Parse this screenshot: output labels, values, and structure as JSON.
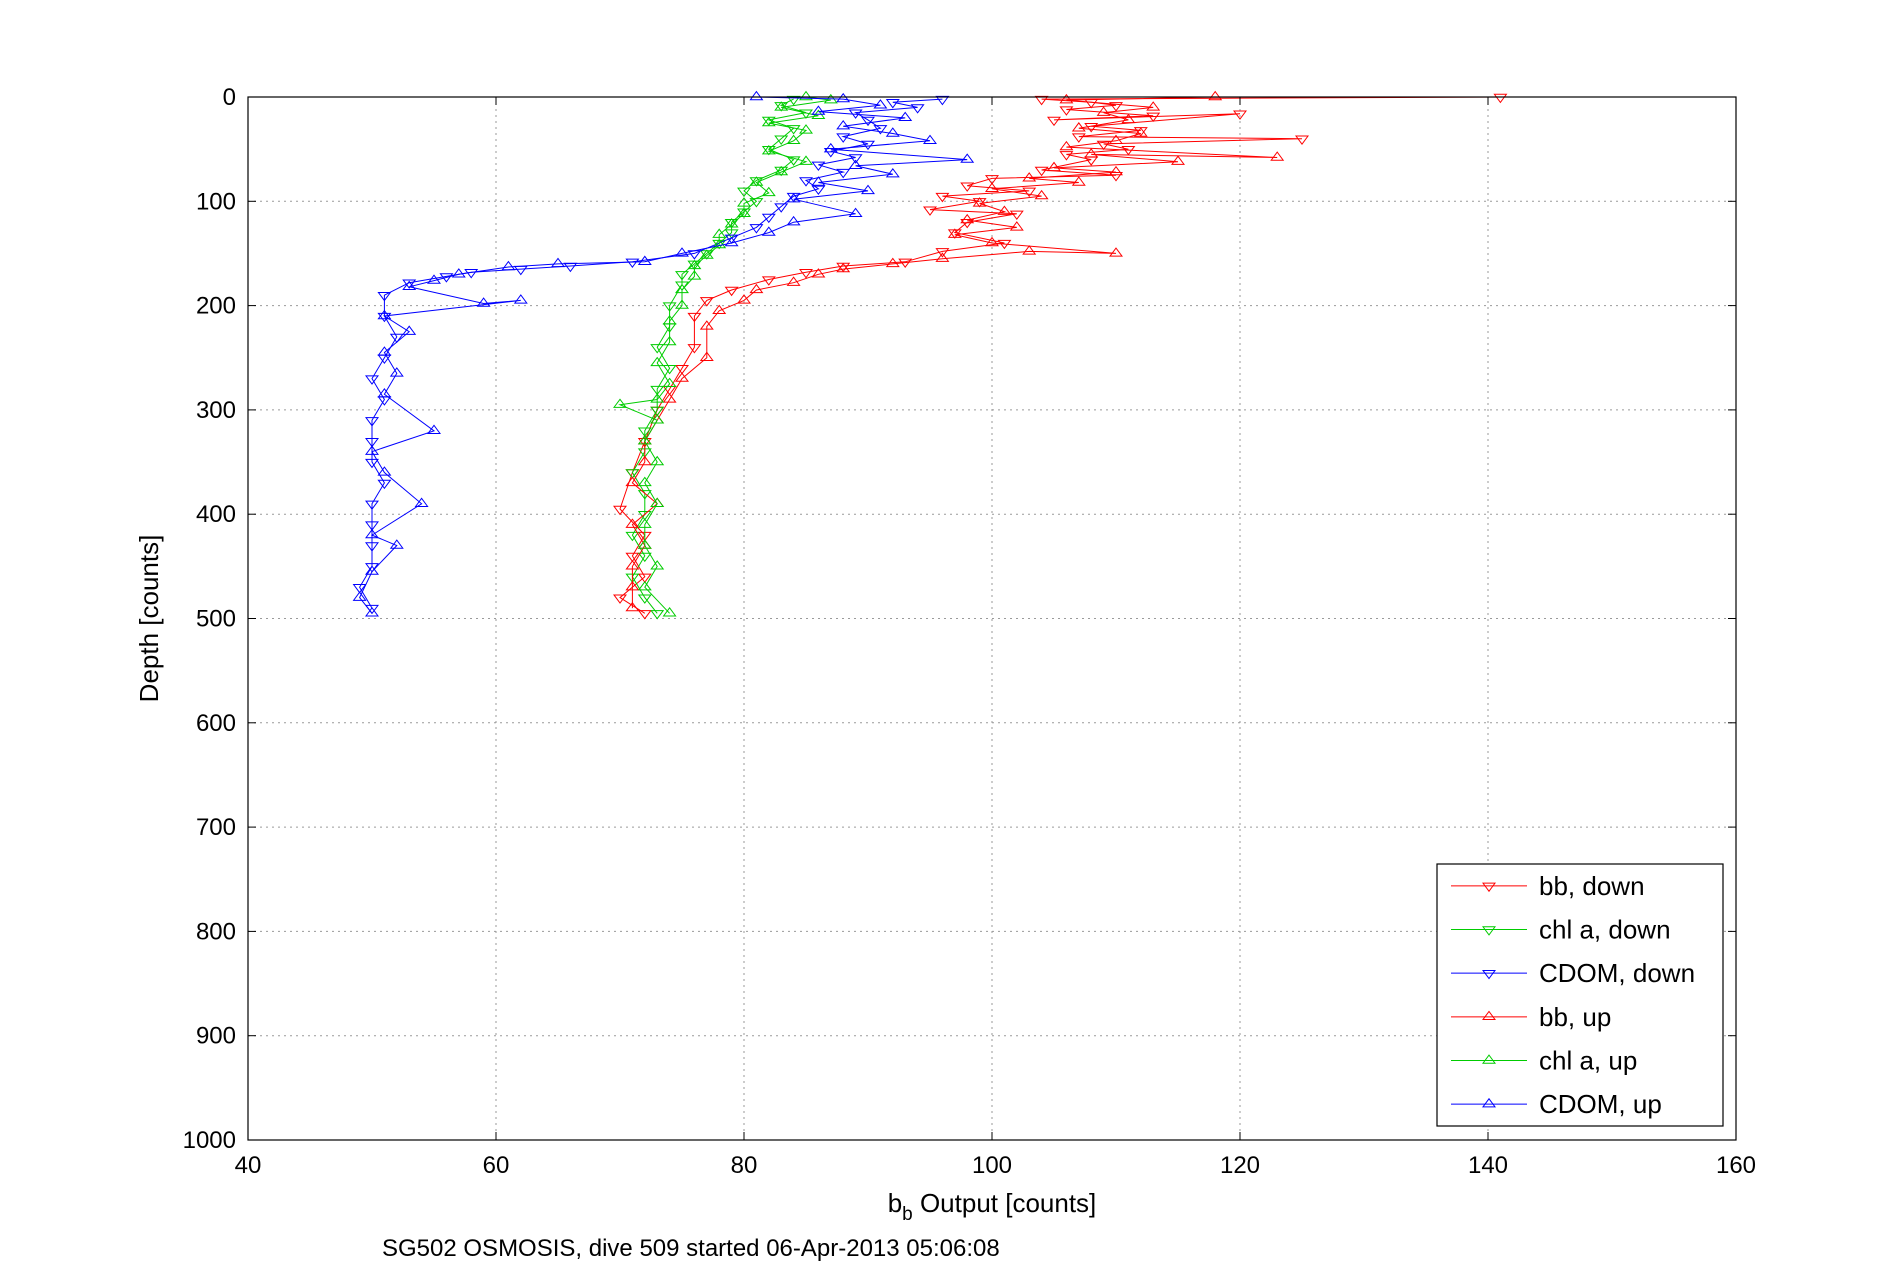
{
  "chart_data": {
    "type": "scatter",
    "xlabel_main": "b",
    "xlabel_sub": "b",
    "xlabel_rest": " Output [counts]",
    "ylabel": "Depth [counts]",
    "xlim": [
      40,
      160
    ],
    "ylim": [
      0,
      1000
    ],
    "y_reversed": true,
    "grid": true,
    "legend_position": "bottom-right",
    "xticks": [
      "40",
      "60",
      "80",
      "100",
      "120",
      "140",
      "160"
    ],
    "yticks": [
      "0",
      "100",
      "200",
      "300",
      "400",
      "500",
      "600",
      "700",
      "800",
      "900",
      "1000"
    ],
    "footnote": "SG502 OSMOSIS, dive 509 started 06-Apr-2013 05:06:08",
    "series": [
      {
        "name": "bb, down",
        "color": "#ff0000",
        "marker": "triangle-down",
        "points": [
          [
            141,
            0
          ],
          [
            104,
            2
          ],
          [
            108,
            5
          ],
          [
            110,
            8
          ],
          [
            106,
            12
          ],
          [
            113,
            18
          ],
          [
            105,
            22
          ],
          [
            120,
            16
          ],
          [
            108,
            28
          ],
          [
            112,
            32
          ],
          [
            107,
            38
          ],
          [
            125,
            40
          ],
          [
            109,
            45
          ],
          [
            111,
            50
          ],
          [
            106,
            55
          ],
          [
            108,
            60
          ],
          [
            104,
            70
          ],
          [
            110,
            75
          ],
          [
            100,
            78
          ],
          [
            98,
            85
          ],
          [
            103,
            90
          ],
          [
            96,
            95
          ],
          [
            99,
            100
          ],
          [
            95,
            108
          ],
          [
            102,
            112
          ],
          [
            98,
            120
          ],
          [
            97,
            130
          ],
          [
            101,
            140
          ],
          [
            96,
            148
          ],
          [
            93,
            158
          ],
          [
            88,
            162
          ],
          [
            85,
            168
          ],
          [
            82,
            175
          ],
          [
            79,
            185
          ],
          [
            77,
            195
          ],
          [
            76,
            210
          ],
          [
            76,
            240
          ],
          [
            75,
            260
          ],
          [
            74,
            280
          ],
          [
            73,
            300
          ],
          [
            72,
            330
          ],
          [
            71,
            360
          ],
          [
            70,
            395
          ],
          [
            72,
            420
          ],
          [
            71,
            440
          ],
          [
            72,
            460
          ],
          [
            70,
            480
          ],
          [
            72,
            495
          ]
        ]
      },
      {
        "name": "chl a, down",
        "color": "#00cc00",
        "marker": "triangle-down",
        "points": [
          [
            84,
            2
          ],
          [
            83,
            8
          ],
          [
            85,
            15
          ],
          [
            82,
            22
          ],
          [
            84,
            30
          ],
          [
            83,
            40
          ],
          [
            82,
            50
          ],
          [
            84,
            60
          ],
          [
            83,
            70
          ],
          [
            81,
            80
          ],
          [
            80,
            90
          ],
          [
            81,
            100
          ],
          [
            80,
            110
          ],
          [
            79,
            120
          ],
          [
            79,
            130
          ],
          [
            78,
            140
          ],
          [
            77,
            150
          ],
          [
            76,
            160
          ],
          [
            75,
            170
          ],
          [
            75,
            180
          ],
          [
            74,
            200
          ],
          [
            74,
            220
          ],
          [
            73,
            240
          ],
          [
            74,
            260
          ],
          [
            73,
            280
          ],
          [
            73,
            300
          ],
          [
            72,
            320
          ],
          [
            72,
            340
          ],
          [
            71,
            360
          ],
          [
            72,
            380
          ],
          [
            72,
            400
          ],
          [
            71,
            420
          ],
          [
            72,
            440
          ],
          [
            71,
            460
          ],
          [
            72,
            480
          ],
          [
            73,
            495
          ]
        ]
      },
      {
        "name": "CDOM, down",
        "color": "#0000ff",
        "marker": "triangle-down",
        "points": [
          [
            96,
            2
          ],
          [
            92,
            5
          ],
          [
            94,
            10
          ],
          [
            89,
            15
          ],
          [
            90,
            22
          ],
          [
            91,
            30
          ],
          [
            88,
            38
          ],
          [
            90,
            45
          ],
          [
            87,
            52
          ],
          [
            89,
            58
          ],
          [
            86,
            65
          ],
          [
            88,
            72
          ],
          [
            85,
            80
          ],
          [
            86,
            88
          ],
          [
            84,
            95
          ],
          [
            83,
            105
          ],
          [
            82,
            115
          ],
          [
            81,
            125
          ],
          [
            79,
            135
          ],
          [
            76,
            150
          ],
          [
            71,
            158
          ],
          [
            66,
            162
          ],
          [
            62,
            165
          ],
          [
            58,
            168
          ],
          [
            56,
            172
          ],
          [
            53,
            178
          ],
          [
            51,
            190
          ],
          [
            51,
            210
          ],
          [
            52,
            230
          ],
          [
            51,
            250
          ],
          [
            50,
            270
          ],
          [
            51,
            290
          ],
          [
            50,
            310
          ],
          [
            50,
            330
          ],
          [
            50,
            350
          ],
          [
            51,
            370
          ],
          [
            50,
            390
          ],
          [
            50,
            410
          ],
          [
            50,
            430
          ],
          [
            50,
            450
          ],
          [
            49,
            470
          ],
          [
            50,
            490
          ]
        ]
      },
      {
        "name": "bb, up",
        "color": "#ff0000",
        "marker": "triangle-up",
        "points": [
          [
            118,
            0
          ],
          [
            106,
            3
          ],
          [
            113,
            10
          ],
          [
            109,
            15
          ],
          [
            111,
            22
          ],
          [
            107,
            30
          ],
          [
            112,
            35
          ],
          [
            110,
            42
          ],
          [
            106,
            48
          ],
          [
            123,
            58
          ],
          [
            108,
            55
          ],
          [
            115,
            62
          ],
          [
            105,
            68
          ],
          [
            110,
            72
          ],
          [
            103,
            78
          ],
          [
            107,
            82
          ],
          [
            100,
            88
          ],
          [
            104,
            95
          ],
          [
            99,
            102
          ],
          [
            101,
            110
          ],
          [
            98,
            118
          ],
          [
            102,
            125
          ],
          [
            97,
            132
          ],
          [
            100,
            140
          ],
          [
            110,
            150
          ],
          [
            103,
            148
          ],
          [
            96,
            155
          ],
          [
            92,
            160
          ],
          [
            88,
            165
          ],
          [
            86,
            170
          ],
          [
            84,
            178
          ],
          [
            81,
            185
          ],
          [
            80,
            195
          ],
          [
            78,
            205
          ],
          [
            77,
            220
          ],
          [
            77,
            250
          ],
          [
            75,
            270
          ],
          [
            74,
            290
          ],
          [
            73,
            310
          ],
          [
            72,
            330
          ],
          [
            72,
            350
          ],
          [
            71,
            370
          ],
          [
            73,
            390
          ],
          [
            71,
            410
          ],
          [
            72,
            430
          ],
          [
            71,
            450
          ],
          [
            71,
            470
          ],
          [
            71,
            490
          ]
        ]
      },
      {
        "name": "chl a, up",
        "color": "#00cc00",
        "marker": "triangle-up",
        "points": [
          [
            85,
            0
          ],
          [
            87,
            3
          ],
          [
            83,
            10
          ],
          [
            86,
            18
          ],
          [
            82,
            25
          ],
          [
            85,
            32
          ],
          [
            84,
            42
          ],
          [
            82,
            52
          ],
          [
            85,
            62
          ],
          [
            83,
            72
          ],
          [
            81,
            82
          ],
          [
            82,
            92
          ],
          [
            80,
            102
          ],
          [
            80,
            112
          ],
          [
            79,
            122
          ],
          [
            78,
            132
          ],
          [
            78,
            142
          ],
          [
            77,
            152
          ],
          [
            76,
            162
          ],
          [
            76,
            172
          ],
          [
            75,
            185
          ],
          [
            75,
            200
          ],
          [
            74,
            215
          ],
          [
            74,
            235
          ],
          [
            73,
            255
          ],
          [
            74,
            275
          ],
          [
            73,
            290
          ],
          [
            70,
            295
          ],
          [
            73,
            310
          ],
          [
            72,
            330
          ],
          [
            73,
            350
          ],
          [
            72,
            370
          ],
          [
            73,
            390
          ],
          [
            72,
            410
          ],
          [
            72,
            430
          ],
          [
            73,
            450
          ],
          [
            72,
            470
          ],
          [
            74,
            495
          ]
        ]
      },
      {
        "name": "CDOM, up",
        "color": "#0000ff",
        "marker": "triangle-up",
        "points": [
          [
            81,
            0
          ],
          [
            88,
            2
          ],
          [
            91,
            8
          ],
          [
            86,
            14
          ],
          [
            93,
            20
          ],
          [
            88,
            28
          ],
          [
            92,
            35
          ],
          [
            95,
            42
          ],
          [
            87,
            50
          ],
          [
            98,
            60
          ],
          [
            89,
            66
          ],
          [
            92,
            74
          ],
          [
            86,
            82
          ],
          [
            90,
            90
          ],
          [
            84,
            98
          ],
          [
            89,
            112
          ],
          [
            84,
            120
          ],
          [
            82,
            130
          ],
          [
            79,
            140
          ],
          [
            75,
            150
          ],
          [
            72,
            158
          ],
          [
            65,
            160
          ],
          [
            61,
            163
          ],
          [
            57,
            170
          ],
          [
            55,
            176
          ],
          [
            53,
            182
          ],
          [
            59,
            198
          ],
          [
            62,
            195
          ],
          [
            51,
            210
          ],
          [
            53,
            225
          ],
          [
            51,
            245
          ],
          [
            52,
            265
          ],
          [
            51,
            285
          ],
          [
            55,
            320
          ],
          [
            50,
            340
          ],
          [
            51,
            360
          ],
          [
            54,
            390
          ],
          [
            50,
            420
          ],
          [
            52,
            430
          ],
          [
            50,
            455
          ],
          [
            49,
            480
          ],
          [
            50,
            495
          ]
        ]
      }
    ]
  }
}
